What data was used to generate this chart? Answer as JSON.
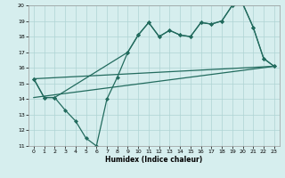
{
  "line1_x": [
    0,
    1,
    2,
    3,
    4,
    5,
    6,
    7,
    8,
    9,
    10,
    11,
    12,
    13,
    14,
    15,
    16,
    17,
    18,
    19,
    20,
    21,
    22,
    23
  ],
  "line1_y": [
    15.3,
    14.1,
    14.1,
    13.3,
    12.6,
    11.5,
    11.0,
    14.0,
    15.4,
    17.0,
    18.1,
    18.9,
    18.0,
    18.4,
    18.1,
    18.0,
    18.9,
    18.8,
    19.0,
    20.0,
    20.1,
    18.6,
    16.6,
    16.1
  ],
  "line2_x": [
    0,
    1,
    2,
    9,
    10,
    11,
    12,
    13,
    14,
    15,
    16,
    17,
    18,
    19,
    20,
    21,
    22,
    23
  ],
  "line2_y": [
    15.3,
    14.1,
    14.1,
    17.0,
    18.1,
    18.9,
    18.0,
    18.4,
    18.1,
    18.0,
    18.9,
    18.8,
    19.0,
    20.0,
    20.1,
    18.6,
    16.6,
    16.1
  ],
  "line3_x": [
    0,
    23
  ],
  "line3_y": [
    15.3,
    16.1
  ],
  "line4_x": [
    0,
    23
  ],
  "line4_y": [
    14.1,
    16.1
  ],
  "color": "#226b5e",
  "bg_color": "#d6eeee",
  "grid_color": "#aed4d4",
  "xlabel": "Humidex (Indice chaleur)",
  "xlim": [
    -0.5,
    23.5
  ],
  "ylim": [
    11,
    20
  ],
  "yticks": [
    11,
    12,
    13,
    14,
    15,
    16,
    17,
    18,
    19,
    20
  ],
  "xticks": [
    0,
    1,
    2,
    3,
    4,
    5,
    6,
    7,
    8,
    9,
    10,
    11,
    12,
    13,
    14,
    15,
    16,
    17,
    18,
    19,
    20,
    21,
    22,
    23
  ]
}
